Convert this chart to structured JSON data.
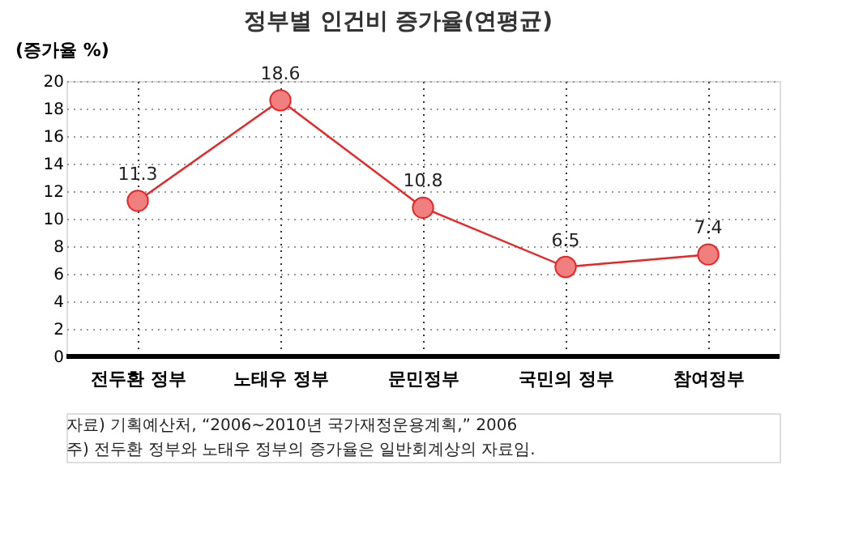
{
  "chart_data": {
    "type": "line",
    "title": "정부별 인건비 증가율(연평균)",
    "ylabel": "(증가율 %)",
    "categories": [
      "전두환 정부",
      "노태우 정부",
      "문민정부",
      "국민의 정부",
      "참여정부"
    ],
    "series": [
      {
        "color": "#ee2222",
        "values": [
          11.3,
          18.6,
          10.8,
          6.5,
          7.4
        ]
      }
    ],
    "ylim": [
      0,
      20
    ],
    "yticks": [
      0,
      2,
      4,
      6,
      8,
      10,
      12,
      14,
      16,
      18,
      20
    ],
    "grid": true,
    "marker": "circle",
    "line_style": "solid",
    "data_labels": true,
    "legend": false,
    "annotations": [
      "자료) 기획예산처, “2006~2010년 국가재정운용계획,” 2006",
      "주) 전두환 정부와 노태우 정부의 증가율은 일반회계상의 자료임."
    ]
  }
}
